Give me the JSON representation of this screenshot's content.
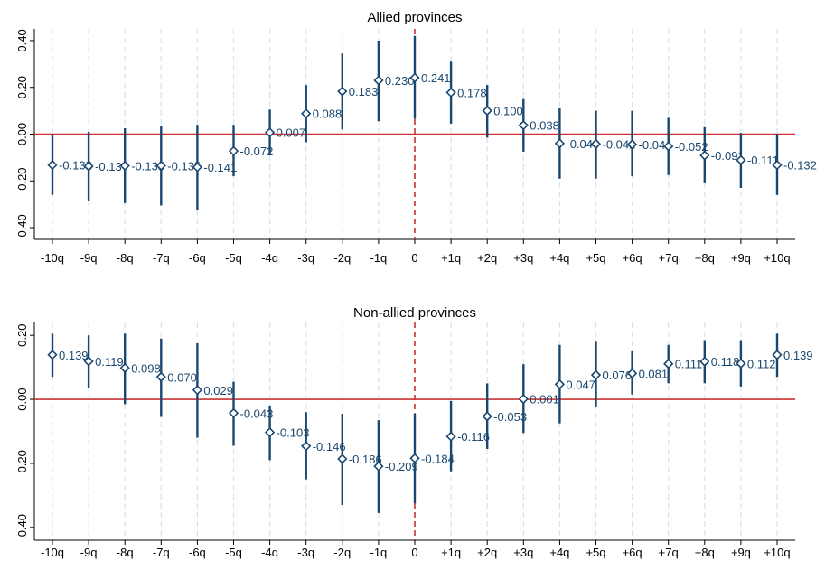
{
  "colors": {
    "series": "#1a476f",
    "zero_line": "#cc3333",
    "event_line": "#cc3333",
    "grid": "#d6e4ee",
    "axis": "#000000",
    "text": "#000000"
  },
  "chart_data": [
    {
      "type": "scatter",
      "title": "Allied provinces",
      "xlabel": "",
      "ylabel": "",
      "ylim": [
        -0.45,
        0.45
      ],
      "yticks": [
        0.4,
        0.2,
        0.0,
        -0.2,
        -0.4
      ],
      "ytick_labels": [
        "0.40",
        "0.20",
        "0.00",
        "-0.20",
        "-0.40"
      ],
      "categories": [
        "-10q",
        "-9q",
        "-8q",
        "-7q",
        "-6q",
        "-5q",
        "-4q",
        "-3q",
        "-2q",
        "-1q",
        "0",
        "+1q",
        "+2q",
        "+3q",
        "+4q",
        "+5q",
        "+6q",
        "+7q",
        "+8q",
        "+9q",
        "+10q"
      ],
      "points": [
        {
          "x": "-10q",
          "y": -0.132,
          "low": -0.26,
          "high": 0.0,
          "label": "-0.132"
        },
        {
          "x": "-9q",
          "y": -0.137,
          "low": -0.285,
          "high": 0.01,
          "label": "-0.137"
        },
        {
          "x": "-8q",
          "y": -0.135,
          "low": -0.295,
          "high": 0.025,
          "label": "-0.135"
        },
        {
          "x": "-7q",
          "y": -0.135,
          "low": -0.305,
          "high": 0.035,
          "label": "-0.135"
        },
        {
          "x": "-6q",
          "y": -0.141,
          "low": -0.325,
          "high": 0.04,
          "label": "-0.141"
        },
        {
          "x": "-5q",
          "y": -0.072,
          "low": -0.18,
          "high": 0.04,
          "label": "-0.072"
        },
        {
          "x": "-4q",
          "y": 0.007,
          "low": -0.09,
          "high": 0.105,
          "label": "0.007"
        },
        {
          "x": "-3q",
          "y": 0.088,
          "low": -0.035,
          "high": 0.21,
          "label": "0.088"
        },
        {
          "x": "-2q",
          "y": 0.183,
          "low": 0.02,
          "high": 0.345,
          "label": "0.183"
        },
        {
          "x": "-1q",
          "y": 0.23,
          "low": 0.055,
          "high": 0.4,
          "label": "0.230"
        },
        {
          "x": "0",
          "y": 0.241,
          "low": 0.065,
          "high": 0.42,
          "label": "0.241"
        },
        {
          "x": "+1q",
          "y": 0.178,
          "low": 0.045,
          "high": 0.31,
          "label": "0.178"
        },
        {
          "x": "+2q",
          "y": 0.1,
          "low": -0.015,
          "high": 0.21,
          "label": "0.100"
        },
        {
          "x": "+3q",
          "y": 0.038,
          "low": -0.075,
          "high": 0.15,
          "label": "0.038"
        },
        {
          "x": "+4q",
          "y": -0.04,
          "low": -0.19,
          "high": 0.11,
          "label": "-0.040"
        },
        {
          "x": "+5q",
          "y": -0.042,
          "low": -0.19,
          "high": 0.1,
          "label": "-0.042"
        },
        {
          "x": "+6q",
          "y": -0.044,
          "low": -0.18,
          "high": 0.1,
          "label": "-0.044"
        },
        {
          "x": "+7q",
          "y": -0.052,
          "low": -0.175,
          "high": 0.07,
          "label": "-0.052"
        },
        {
          "x": "+8q",
          "y": -0.091,
          "low": -0.21,
          "high": 0.03,
          "label": "-0.091"
        },
        {
          "x": "+9q",
          "y": -0.111,
          "low": -0.23,
          "high": 0.005,
          "label": "-0.111"
        },
        {
          "x": "+10q",
          "y": -0.132,
          "low": -0.26,
          "high": 0.0,
          "label": "-0.132"
        }
      ],
      "reference_line_y": 0,
      "event_line_x": "0",
      "grid": true
    },
    {
      "type": "scatter",
      "title": "Non-allied provinces",
      "xlabel": "",
      "ylabel": "",
      "ylim": [
        -0.44,
        0.24
      ],
      "yticks": [
        0.2,
        0.0,
        -0.2,
        -0.4
      ],
      "ytick_labels": [
        "0.20",
        "0.00",
        "-0.20",
        "-0.40"
      ],
      "categories": [
        "-10q",
        "-9q",
        "-8q",
        "-7q",
        "-6q",
        "-5q",
        "-4q",
        "-3q",
        "-2q",
        "-1q",
        "0",
        "+1q",
        "+2q",
        "+3q",
        "+4q",
        "+5q",
        "+6q",
        "+7q",
        "+8q",
        "+9q",
        "+10q"
      ],
      "points": [
        {
          "x": "-10q",
          "y": 0.139,
          "low": 0.07,
          "high": 0.205,
          "label": "0.139"
        },
        {
          "x": "-9q",
          "y": 0.119,
          "low": 0.035,
          "high": 0.2,
          "label": "0.119"
        },
        {
          "x": "-8q",
          "y": 0.098,
          "low": -0.015,
          "high": 0.205,
          "label": "0.098"
        },
        {
          "x": "-7q",
          "y": 0.07,
          "low": -0.055,
          "high": 0.19,
          "label": "0.070"
        },
        {
          "x": "-6q",
          "y": 0.029,
          "low": -0.12,
          "high": 0.175,
          "label": "0.029"
        },
        {
          "x": "-5q",
          "y": -0.043,
          "low": -0.145,
          "high": 0.055,
          "label": "-0.043"
        },
        {
          "x": "-4q",
          "y": -0.103,
          "low": -0.19,
          "high": -0.02,
          "label": "-0.103"
        },
        {
          "x": "-3q",
          "y": -0.146,
          "low": -0.25,
          "high": -0.04,
          "label": "-0.146"
        },
        {
          "x": "-2q",
          "y": -0.186,
          "low": -0.33,
          "high": -0.045,
          "label": "-0.186"
        },
        {
          "x": "-1q",
          "y": -0.209,
          "low": -0.355,
          "high": -0.065,
          "label": "-0.209"
        },
        {
          "x": "0",
          "y": -0.184,
          "low": -0.325,
          "high": -0.045,
          "label": "-0.184"
        },
        {
          "x": "+1q",
          "y": -0.116,
          "low": -0.225,
          "high": -0.005,
          "label": "-0.116"
        },
        {
          "x": "+2q",
          "y": -0.053,
          "low": -0.155,
          "high": 0.05,
          "label": "-0.053"
        },
        {
          "x": "+3q",
          "y": 0.001,
          "low": -0.105,
          "high": 0.11,
          "label": "0.001"
        },
        {
          "x": "+4q",
          "y": 0.047,
          "low": -0.075,
          "high": 0.17,
          "label": "0.047"
        },
        {
          "x": "+5q",
          "y": 0.076,
          "low": -0.025,
          "high": 0.18,
          "label": "0.076"
        },
        {
          "x": "+6q",
          "y": 0.081,
          "low": 0.015,
          "high": 0.15,
          "label": "0.081"
        },
        {
          "x": "+7q",
          "y": 0.111,
          "low": 0.05,
          "high": 0.17,
          "label": "0.111"
        },
        {
          "x": "+8q",
          "y": 0.118,
          "low": 0.05,
          "high": 0.185,
          "label": "0.118"
        },
        {
          "x": "+9q",
          "y": 0.112,
          "low": 0.04,
          "high": 0.185,
          "label": "0.112"
        },
        {
          "x": "+10q",
          "y": 0.139,
          "low": 0.07,
          "high": 0.205,
          "label": "0.139"
        }
      ],
      "reference_line_y": 0,
      "event_line_x": "0",
      "grid": true
    }
  ]
}
